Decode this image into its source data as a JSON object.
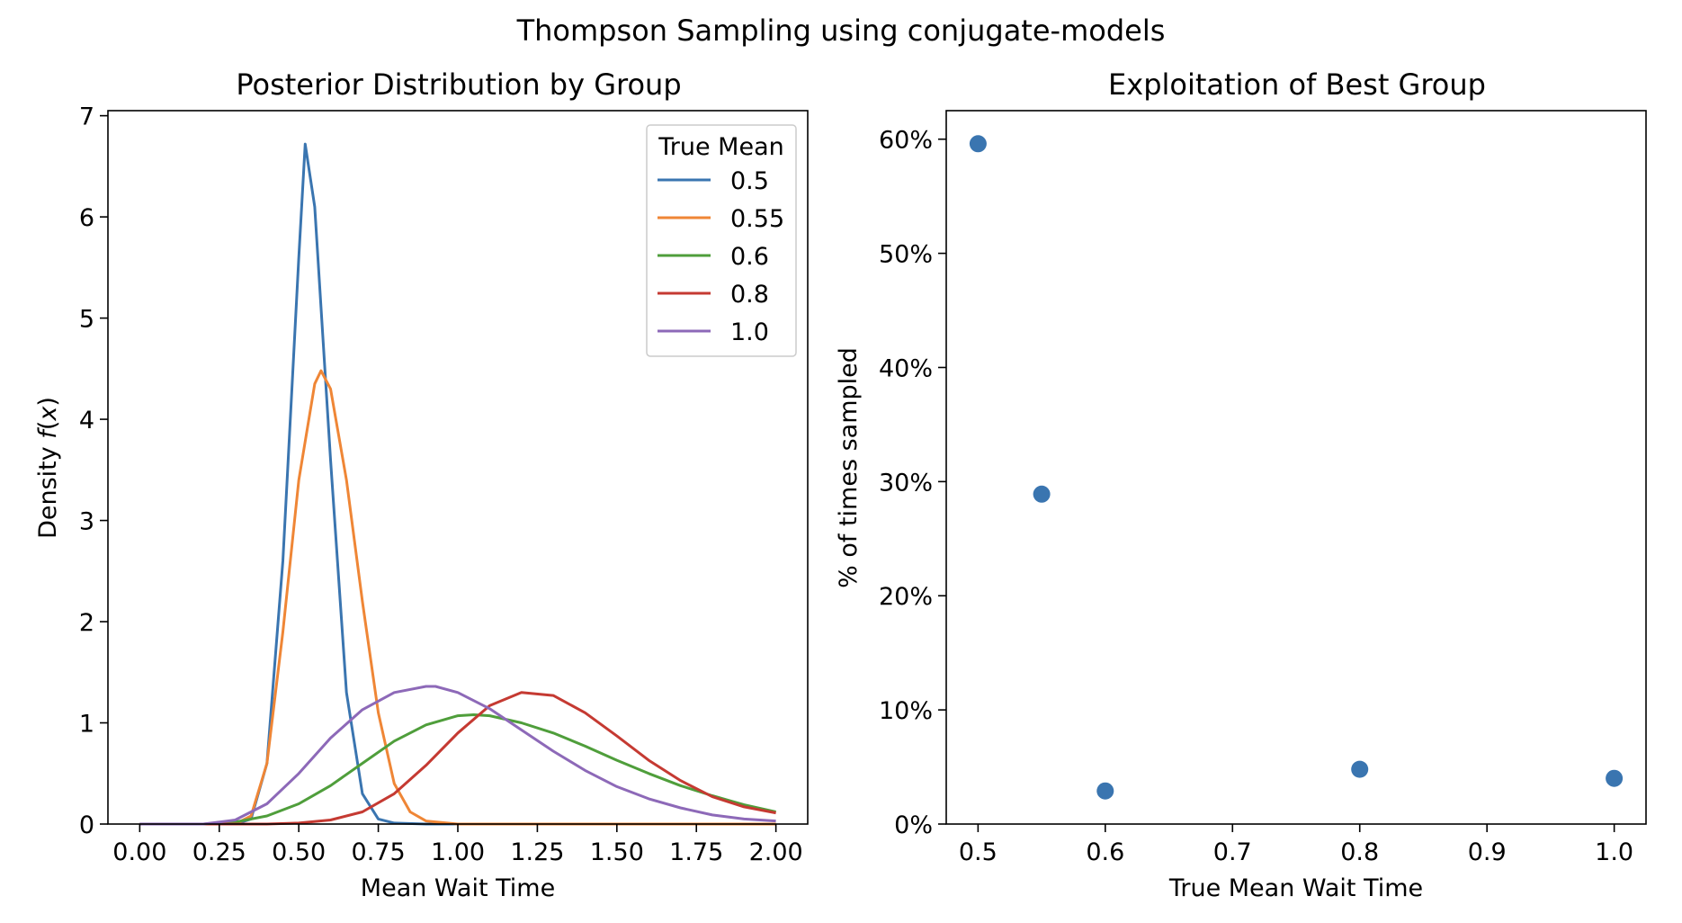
{
  "figure": {
    "title": "Thompson Sampling using conjugate-models"
  },
  "chart_data": [
    {
      "type": "line",
      "title": "Posterior Distribution by Group",
      "xlabel": "Mean Wait Time",
      "ylabel": "Density f(x)",
      "ylabel_prefix": "Density ",
      "ylabel_var": "f",
      "ylabel_arg": "x",
      "xlim": [
        -0.1,
        2.1
      ],
      "ylim": [
        0,
        7.05
      ],
      "xticks": [
        0,
        0.25,
        0.5,
        0.75,
        1.0,
        1.25,
        1.5,
        1.75,
        2.0
      ],
      "xtick_labels": [
        "0.00",
        "0.25",
        "0.50",
        "0.75",
        "1.00",
        "1.25",
        "1.50",
        "1.75",
        "2.00"
      ],
      "yticks": [
        0,
        1,
        2,
        3,
        4,
        5,
        6,
        7
      ],
      "ytick_labels": [
        "0",
        "1",
        "2",
        "3",
        "4",
        "5",
        "6",
        "7"
      ],
      "grid": false,
      "legend": {
        "title": "True Mean",
        "placement": "upper right"
      },
      "series": [
        {
          "name": "0.5",
          "color": "#3a75b0",
          "x": [
            0,
            0.3,
            0.35,
            0.4,
            0.45,
            0.5,
            0.52,
            0.55,
            0.6,
            0.65,
            0.7,
            0.75,
            0.8,
            0.9,
            1.0,
            2.0
          ],
          "y": [
            0,
            0.0,
            0.05,
            0.6,
            2.6,
            5.6,
            6.72,
            6.1,
            3.6,
            1.3,
            0.3,
            0.05,
            0.01,
            0,
            0,
            0
          ]
        },
        {
          "name": "0.55",
          "color": "#ef8636",
          "x": [
            0,
            0.3,
            0.35,
            0.4,
            0.45,
            0.5,
            0.55,
            0.57,
            0.6,
            0.65,
            0.7,
            0.75,
            0.8,
            0.85,
            0.9,
            1.0,
            1.2,
            2.0
          ],
          "y": [
            0,
            0.0,
            0.08,
            0.6,
            1.9,
            3.4,
            4.35,
            4.48,
            4.3,
            3.4,
            2.2,
            1.1,
            0.4,
            0.12,
            0.03,
            0,
            0,
            0
          ]
        },
        {
          "name": "0.6",
          "color": "#4f9e3b",
          "x": [
            0,
            0.2,
            0.3,
            0.4,
            0.5,
            0.6,
            0.7,
            0.8,
            0.9,
            1.0,
            1.05,
            1.1,
            1.2,
            1.3,
            1.4,
            1.5,
            1.6,
            1.7,
            1.8,
            1.9,
            2.0
          ],
          "y": [
            0,
            0.0,
            0.02,
            0.08,
            0.2,
            0.38,
            0.6,
            0.82,
            0.98,
            1.07,
            1.08,
            1.07,
            1.0,
            0.9,
            0.77,
            0.63,
            0.5,
            0.38,
            0.28,
            0.19,
            0.12
          ]
        },
        {
          "name": "0.8",
          "color": "#c53a32",
          "x": [
            0,
            0.4,
            0.5,
            0.6,
            0.7,
            0.8,
            0.9,
            1.0,
            1.1,
            1.2,
            1.3,
            1.4,
            1.5,
            1.6,
            1.7,
            1.8,
            1.9,
            2.0
          ],
          "y": [
            0,
            0.0,
            0.01,
            0.04,
            0.12,
            0.3,
            0.58,
            0.9,
            1.17,
            1.3,
            1.27,
            1.1,
            0.87,
            0.63,
            0.43,
            0.27,
            0.17,
            0.11
          ]
        },
        {
          "name": "1.0",
          "color": "#8d69b8",
          "x": [
            0,
            0.2,
            0.3,
            0.4,
            0.5,
            0.6,
            0.7,
            0.8,
            0.9,
            0.93,
            1.0,
            1.1,
            1.2,
            1.3,
            1.4,
            1.5,
            1.6,
            1.7,
            1.8,
            1.9,
            2.0
          ],
          "y": [
            0,
            0.0,
            0.04,
            0.2,
            0.5,
            0.85,
            1.13,
            1.3,
            1.36,
            1.36,
            1.3,
            1.14,
            0.93,
            0.72,
            0.53,
            0.37,
            0.25,
            0.16,
            0.09,
            0.05,
            0.03
          ]
        }
      ]
    },
    {
      "type": "scatter",
      "title": "Exploitation of Best Group",
      "xlabel": "True Mean Wait Time",
      "ylabel": "% of times sampled",
      "xlim": [
        0.475,
        1.025
      ],
      "ylim": [
        0,
        0.625
      ],
      "xticks": [
        0.5,
        0.6,
        0.7,
        0.8,
        0.9,
        1.0
      ],
      "xtick_labels": [
        "0.5",
        "0.6",
        "0.7",
        "0.8",
        "0.9",
        "1.0"
      ],
      "yticks": [
        0,
        0.1,
        0.2,
        0.3,
        0.4,
        0.5,
        0.6
      ],
      "ytick_labels": [
        "0%",
        "10%",
        "20%",
        "30%",
        "40%",
        "50%",
        "60%"
      ],
      "grid": false,
      "color": "#3a75b0",
      "x": [
        0.5,
        0.55,
        0.6,
        0.8,
        1.0
      ],
      "y": [
        0.596,
        0.289,
        0.029,
        0.048,
        0.04
      ]
    }
  ]
}
